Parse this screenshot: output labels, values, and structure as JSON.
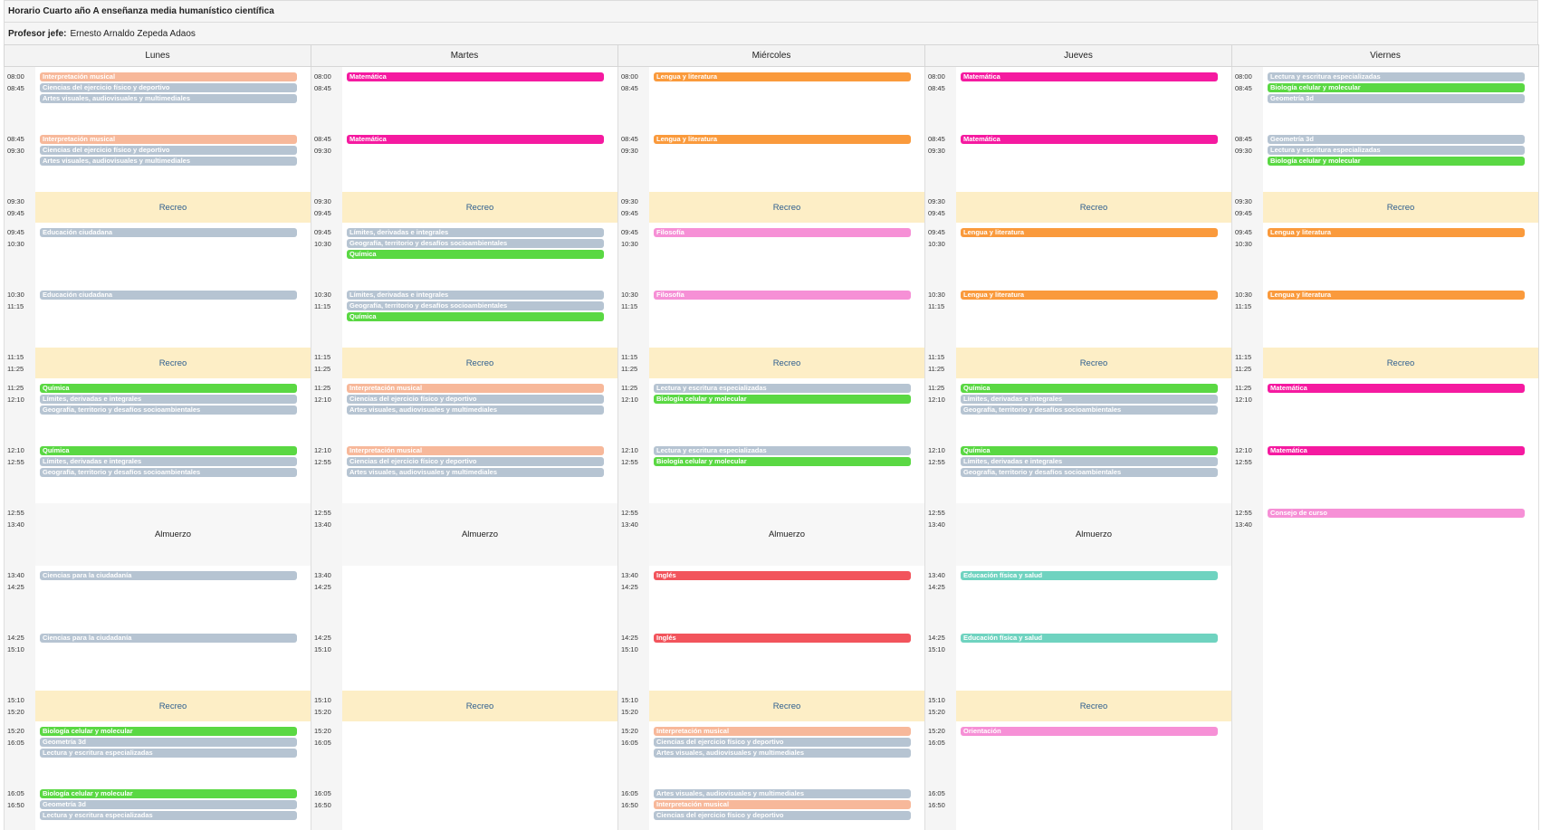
{
  "title": "Horario Cuarto año A enseñanza media humanístico científica",
  "teacher": {
    "label": "Profesor jefe:",
    "name": "Ernesto Arnaldo Zepeda Adaos"
  },
  "colors": {
    "Matemática": "#f51aa0",
    "Lengua y literatura": "#fa9a3c",
    "Química": "#5ad843",
    "Biología celular y molecular": "#5ad843",
    "Interpretación musical": "#f7b89a",
    "Inglés": "#f2545c",
    "Filosofía": "#f690d6",
    "Orientación": "#f690d6",
    "Consejo de curso": "#f690d6",
    "Educación física y salud": "#6fd3c0",
    "default": "#b6c4d2",
    "recreo_bg": "#fdeec6"
  },
  "days": [
    "Lunes",
    "Martes",
    "Miércoles",
    "Jueves",
    "Viernes"
  ],
  "rows": [
    {
      "type": "class",
      "start": "08:00",
      "end": "08:45"
    },
    {
      "type": "class",
      "start": "08:45",
      "end": "09:30"
    },
    {
      "type": "recreo",
      "start": "09:30",
      "end": "09:45"
    },
    {
      "type": "class",
      "start": "09:45",
      "end": "10:30"
    },
    {
      "type": "class",
      "start": "10:30",
      "end": "11:15"
    },
    {
      "type": "recreo",
      "start": "11:15",
      "end": "11:25"
    },
    {
      "type": "class",
      "start": "11:25",
      "end": "12:10"
    },
    {
      "type": "class",
      "start": "12:10",
      "end": "12:55"
    },
    {
      "type": "almuerzo",
      "start": "12:55",
      "end": "13:40"
    },
    {
      "type": "class",
      "start": "13:40",
      "end": "14:25"
    },
    {
      "type": "class",
      "start": "14:25",
      "end": "15:10"
    },
    {
      "type": "recreo",
      "start": "15:10",
      "end": "15:20"
    },
    {
      "type": "class",
      "start": "15:20",
      "end": "16:05"
    },
    {
      "type": "class",
      "start": "16:05",
      "end": "16:50"
    }
  ],
  "labels": {
    "recreo": "Recreo",
    "almuerzo": "Almuerzo"
  },
  "schedule": [
    [
      {
        "type": "class",
        "show_time": true,
        "subjects": [
          "Interpretación musical",
          "Ciencias del ejercicio físico y deportivo",
          "Artes visuales, audiovisuales y multimediales"
        ]
      },
      {
        "type": "class",
        "show_time": true,
        "subjects": [
          "Interpretación musical",
          "Ciencias del ejercicio físico y deportivo",
          "Artes visuales, audiovisuales y multimediales"
        ]
      },
      {
        "type": "recreo",
        "show_time": true
      },
      {
        "type": "class",
        "show_time": true,
        "subjects": [
          "Educación ciudadana"
        ]
      },
      {
        "type": "class",
        "show_time": true,
        "subjects": [
          "Educación ciudadana"
        ]
      },
      {
        "type": "recreo",
        "show_time": true
      },
      {
        "type": "class",
        "show_time": true,
        "subjects": [
          "Química",
          "Límites, derivadas e integrales",
          "Geografía, territorio y desafíos socioambientales"
        ]
      },
      {
        "type": "class",
        "show_time": true,
        "subjects": [
          "Química",
          "Límites, derivadas e integrales",
          "Geografía, territorio y desafíos socioambientales"
        ]
      },
      {
        "type": "almuerzo",
        "show_time": true
      },
      {
        "type": "class",
        "show_time": true,
        "subjects": [
          "Ciencias para la ciudadanía"
        ]
      },
      {
        "type": "class",
        "show_time": true,
        "subjects": [
          "Ciencias para la ciudadanía"
        ]
      },
      {
        "type": "recreo",
        "show_time": true
      },
      {
        "type": "class",
        "show_time": true,
        "subjects": [
          "Biología celular y molecular",
          "Geometría 3d",
          "Lectura y escritura especializadas"
        ]
      },
      {
        "type": "class",
        "show_time": true,
        "subjects": [
          "Biología celular y molecular",
          "Geometría 3d",
          "Lectura y escritura especializadas"
        ]
      }
    ],
    [
      {
        "type": "class",
        "show_time": true,
        "subjects": [
          "Matemática"
        ]
      },
      {
        "type": "class",
        "show_time": true,
        "subjects": [
          "Matemática"
        ]
      },
      {
        "type": "recreo",
        "show_time": true
      },
      {
        "type": "class",
        "show_time": true,
        "subjects": [
          "Límites, derivadas e integrales",
          "Geografía, territorio y desafíos socioambientales",
          "Química"
        ]
      },
      {
        "type": "class",
        "show_time": true,
        "subjects": [
          "Límites, derivadas e integrales",
          "Geografía, territorio y desafíos socioambientales",
          "Química"
        ]
      },
      {
        "type": "recreo",
        "show_time": true
      },
      {
        "type": "class",
        "show_time": true,
        "subjects": [
          "Interpretación musical",
          "Ciencias del ejercicio físico y deportivo",
          "Artes visuales, audiovisuales y multimediales"
        ]
      },
      {
        "type": "class",
        "show_time": true,
        "subjects": [
          "Interpretación musical",
          "Ciencias del ejercicio físico y deportivo",
          "Artes visuales, audiovisuales y multimediales"
        ]
      },
      {
        "type": "almuerzo",
        "show_time": true
      },
      {
        "type": "class",
        "show_time": true,
        "subjects": []
      },
      {
        "type": "class",
        "show_time": true,
        "subjects": []
      },
      {
        "type": "recreo",
        "show_time": true
      },
      {
        "type": "class",
        "show_time": true,
        "subjects": []
      },
      {
        "type": "class",
        "show_time": true,
        "subjects": []
      }
    ],
    [
      {
        "type": "class",
        "show_time": true,
        "subjects": [
          "Lengua y literatura"
        ]
      },
      {
        "type": "class",
        "show_time": true,
        "subjects": [
          "Lengua y literatura"
        ]
      },
      {
        "type": "recreo",
        "show_time": true
      },
      {
        "type": "class",
        "show_time": true,
        "subjects": [
          "Filosofía"
        ]
      },
      {
        "type": "class",
        "show_time": true,
        "subjects": [
          "Filosofía"
        ]
      },
      {
        "type": "recreo",
        "show_time": true
      },
      {
        "type": "class",
        "show_time": true,
        "subjects": [
          "Lectura y escritura especializadas",
          "Biología celular y molecular"
        ]
      },
      {
        "type": "class",
        "show_time": true,
        "subjects": [
          "Lectura y escritura especializadas",
          "Biología celular y molecular"
        ]
      },
      {
        "type": "almuerzo",
        "show_time": true
      },
      {
        "type": "class",
        "show_time": true,
        "subjects": [
          "Inglés"
        ]
      },
      {
        "type": "class",
        "show_time": true,
        "subjects": [
          "Inglés"
        ]
      },
      {
        "type": "recreo",
        "show_time": true
      },
      {
        "type": "class",
        "show_time": true,
        "subjects": [
          "Interpretación musical",
          "Ciencias del ejercicio físico y deportivo",
          "Artes visuales, audiovisuales y multimediales"
        ]
      },
      {
        "type": "class",
        "show_time": true,
        "subjects": [
          "Artes visuales, audiovisuales y multimediales",
          "Interpretación musical",
          "Ciencias del ejercicio físico y deportivo"
        ]
      }
    ],
    [
      {
        "type": "class",
        "show_time": true,
        "subjects": [
          "Matemática"
        ]
      },
      {
        "type": "class",
        "show_time": true,
        "subjects": [
          "Matemática"
        ]
      },
      {
        "type": "recreo",
        "show_time": true
      },
      {
        "type": "class",
        "show_time": true,
        "subjects": [
          "Lengua y literatura"
        ]
      },
      {
        "type": "class",
        "show_time": true,
        "subjects": [
          "Lengua y literatura"
        ]
      },
      {
        "type": "recreo",
        "show_time": true
      },
      {
        "type": "class",
        "show_time": true,
        "subjects": [
          "Química",
          "Límites, derivadas e integrales",
          "Geografía, territorio y desafíos socioambientales"
        ]
      },
      {
        "type": "class",
        "show_time": true,
        "subjects": [
          "Química",
          "Límites, derivadas e integrales",
          "Geografía, territorio y desafíos socioambientales"
        ]
      },
      {
        "type": "almuerzo",
        "show_time": true
      },
      {
        "type": "class",
        "show_time": true,
        "subjects": [
          "Educación física y salud"
        ]
      },
      {
        "type": "class",
        "show_time": true,
        "subjects": [
          "Educación física y salud"
        ]
      },
      {
        "type": "recreo",
        "show_time": true
      },
      {
        "type": "class",
        "show_time": true,
        "subjects": [
          "Orientación"
        ]
      },
      {
        "type": "class",
        "show_time": true,
        "subjects": []
      }
    ],
    [
      {
        "type": "class",
        "show_time": true,
        "subjects": [
          "Lectura y escritura especializadas",
          "Biología celular y molecular",
          "Geometría 3d"
        ]
      },
      {
        "type": "class",
        "show_time": true,
        "subjects": [
          "Geometría 3d",
          "Lectura y escritura especializadas",
          "Biología celular y molecular"
        ]
      },
      {
        "type": "recreo",
        "show_time": true
      },
      {
        "type": "class",
        "show_time": true,
        "subjects": [
          "Lengua y literatura"
        ]
      },
      {
        "type": "class",
        "show_time": true,
        "subjects": [
          "Lengua y literatura"
        ]
      },
      {
        "type": "recreo",
        "show_time": true
      },
      {
        "type": "class",
        "show_time": true,
        "subjects": [
          "Matemática"
        ]
      },
      {
        "type": "class",
        "show_time": true,
        "subjects": [
          "Matemática"
        ]
      },
      {
        "type": "class",
        "show_time": true,
        "subjects": [
          "Consejo de curso"
        ]
      },
      {
        "type": "empty",
        "show_time": false
      },
      {
        "type": "empty",
        "show_time": false
      },
      {
        "type": "empty",
        "show_time": false
      },
      {
        "type": "empty",
        "show_time": false
      },
      {
        "type": "empty",
        "show_time": false
      }
    ]
  ]
}
